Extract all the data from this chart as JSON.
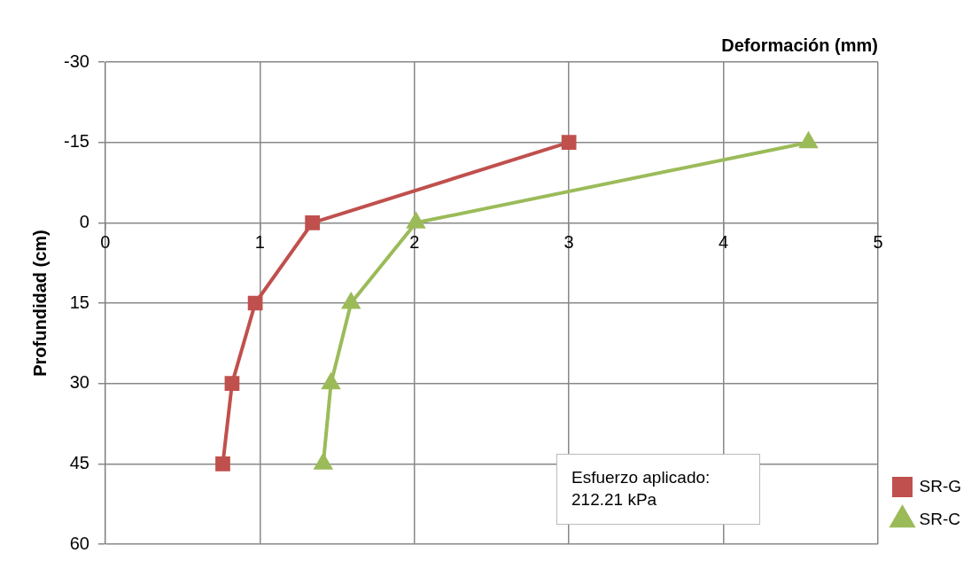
{
  "chart_data": {
    "type": "line",
    "xlabel": "Deformación (mm)",
    "ylabel": "Profundidad (cm)",
    "xlim": [
      0,
      5
    ],
    "xticks": [
      0,
      1,
      2,
      3,
      4,
      5
    ],
    "ylim": [
      60,
      -30
    ],
    "yticks": [
      -30,
      -15,
      0,
      15,
      30,
      45,
      60
    ],
    "series": [
      {
        "name": "SR-G",
        "color": "#c0504d",
        "marker": "square",
        "x": [
          3.0,
          1.34,
          0.97,
          0.82,
          0.76
        ],
        "values": [
          -15,
          0,
          15,
          30,
          45
        ]
      },
      {
        "name": "SR-C",
        "color": "#9bbb59",
        "marker": "triangle",
        "x": [
          4.55,
          2.01,
          1.59,
          1.46,
          1.41
        ],
        "values": [
          -15,
          0,
          15,
          30,
          45
        ]
      }
    ],
    "annotations": [
      "Esfuerzo aplicado:\n212.21 kPa"
    ],
    "grid": true,
    "legend": "bottom right",
    "line_style": "solid"
  }
}
